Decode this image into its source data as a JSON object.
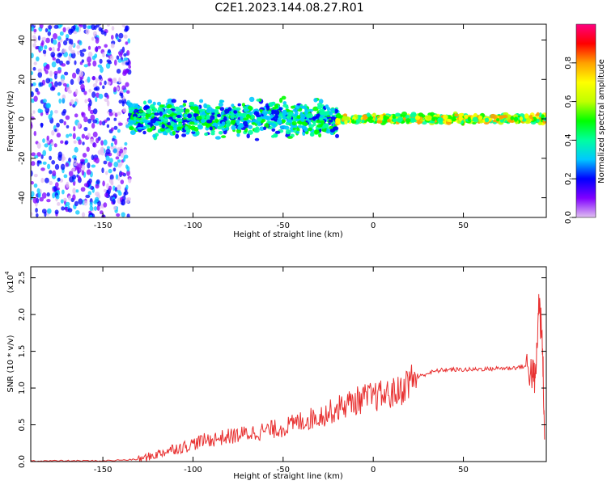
{
  "title": "C2E1.2023.144.08.27.R01",
  "chart_data": [
    {
      "type": "heatmap",
      "xlabel": "Height of straight line (km)",
      "ylabel": "Frequency (Hz)",
      "xlim": [
        -190,
        96
      ],
      "ylim": [
        -50,
        48
      ],
      "xticks": [
        -150,
        -100,
        -50,
        0,
        50
      ],
      "xtick_labels": [
        "-150",
        "-100",
        "-50",
        "0",
        "50"
      ],
      "yticks": [
        -40,
        -20,
        0,
        20,
        40
      ],
      "ytick_labels": [
        "-40",
        "-20",
        "0",
        "20",
        "40"
      ],
      "colorbar": {
        "label": "Normalized spectral amplitude",
        "range": [
          0,
          1
        ],
        "ticks": [
          0.0,
          0.2,
          0.4,
          0.6,
          0.8
        ],
        "tick_labels": [
          "0.0",
          "0.2",
          "0.4",
          "0.6",
          "0.8"
        ],
        "colormap": [
          "#e0c0f0",
          "#8000ff",
          "#0000ff",
          "#00c8ff",
          "#00ffa0",
          "#00ff00",
          "#c0ff00",
          "#ffff00",
          "#ffa000",
          "#ff0000",
          "#ff0080"
        ]
      },
      "regions": [
        {
          "x_range": [
            -190,
            -135
          ],
          "freq_center": 0,
          "freq_spread": 50,
          "amplitude": 0.15,
          "description_pattern": "scattered noise"
        },
        {
          "x_range": [
            -135,
            -20
          ],
          "freq_center": 0,
          "freq_spread": 8,
          "amplitude": 0.35
        },
        {
          "x_range": [
            -20,
            96
          ],
          "freq_center": 0,
          "freq_spread": 2,
          "amplitude": 0.6
        }
      ],
      "grid": false
    },
    {
      "type": "line",
      "xlabel": "Height of straight line (km)",
      "ylabel": "SNR (10 * v/v)",
      "y_multiplier": "(x10",
      "y_multiplier_exp": "4",
      "xlim": [
        -190,
        96
      ],
      "ylim": [
        0,
        2.65
      ],
      "xticks": [
        -150,
        -100,
        -50,
        0,
        50
      ],
      "xtick_labels": [
        "-150",
        "-100",
        "-50",
        "0",
        "50"
      ],
      "yticks": [
        0.0,
        0.5,
        1.0,
        1.5,
        2.0,
        2.5
      ],
      "ytick_labels": [
        "0.0",
        "0.5",
        "1.0",
        "1.5",
        "2.0",
        "2.5"
      ],
      "line_color": "#e83030",
      "x": [
        -190,
        -180,
        -170,
        -160,
        -150,
        -140,
        -130,
        -125,
        -120,
        -115,
        -110,
        -105,
        -100,
        -95,
        -90,
        -85,
        -80,
        -75,
        -70,
        -65,
        -60,
        -55,
        -50,
        -45,
        -40,
        -35,
        -30,
        -25,
        -20,
        -15,
        -10,
        -5,
        0,
        5,
        10,
        15,
        20,
        25,
        30,
        35,
        40,
        45,
        50,
        55,
        60,
        65,
        70,
        75,
        80,
        85,
        88,
        90,
        92,
        94,
        95
      ],
      "y": [
        0.01,
        0.01,
        0.01,
        0.01,
        0.01,
        0.02,
        0.03,
        0.06,
        0.1,
        0.14,
        0.18,
        0.2,
        0.24,
        0.28,
        0.3,
        0.32,
        0.34,
        0.36,
        0.38,
        0.4,
        0.42,
        0.44,
        0.46,
        0.5,
        0.55,
        0.58,
        0.62,
        0.66,
        0.72,
        0.78,
        0.82,
        0.86,
        0.88,
        0.9,
        0.92,
        0.96,
        1.1,
        1.15,
        1.2,
        1.23,
        1.25,
        1.25,
        1.25,
        1.25,
        1.26,
        1.26,
        1.27,
        1.27,
        1.28,
        1.3,
        1.2,
        1.1,
        2.2,
        1.5,
        0.3
      ],
      "grid": false
    }
  ]
}
